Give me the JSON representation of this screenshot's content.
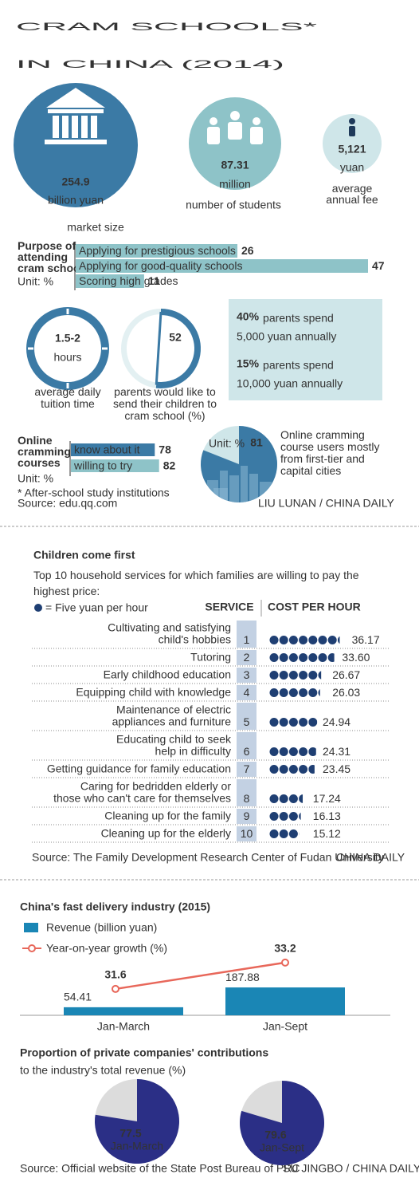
{
  "header": {
    "title": "CRAM SCHOOLS*\nIN CHINA (2014)"
  },
  "stats": [
    {
      "value": "254.9",
      "unit": "billion yuan",
      "label": "market size"
    },
    {
      "value": "87.31",
      "unit": "million",
      "label": "number of students"
    },
    {
      "value": "5,121",
      "unit": "yuan",
      "label": "average annual fee"
    }
  ],
  "tuition": {
    "value": "1.5-2",
    "unit": "hours",
    "label": "average daily tuition time"
  },
  "spending": [
    {
      "share": "40%",
      "text": "parents spend",
      "amount": "5,000 yuan annually"
    },
    {
      "share": "15%",
      "text": "parents spend",
      "amount": "10,000 yuan annually"
    }
  ],
  "notes": {
    "footnote": "* After-school study institutions",
    "source": "Source: edu.qq.com",
    "credit": "LIU LUNAN / CHINA DAILY"
  },
  "services_notes": {
    "source": "Source: The Family Development Research Center of Fudan University",
    "credit": "CHINA DAILY"
  },
  "delivery_notes": {
    "source": "Source: Official website of the State Post Bureau of PRC",
    "credit": "SU JINGBO / CHINA DAILY"
  },
  "chart_data": [
    {
      "type": "bar",
      "title": "Purpose of attending cram school",
      "unit": "Unit: %",
      "categories": [
        "Applying for prestigious schools",
        "Applying for good-quality schools",
        "Scoring high grades"
      ],
      "values": [
        26,
        47,
        11
      ],
      "color": "#8ec3c8",
      "xlim": [
        0,
        47
      ]
    },
    {
      "type": "donut",
      "values": [
        52
      ],
      "caption": "parents would like to send their children to cram school (%)",
      "color": "#3b7aa5"
    },
    {
      "type": "bar",
      "title": "Online cramming courses",
      "unit": "Unit: %",
      "categories": [
        "know about it",
        "willing to try"
      ],
      "values": [
        78,
        82
      ],
      "colors": [
        "#3b7aa5",
        "#8ec3c8"
      ],
      "xlim": [
        0,
        100
      ]
    },
    {
      "type": "pie",
      "unit": "Unit: %",
      "values": [
        81
      ],
      "caption": "Online cramming course users mostly from first-tier and capital cities",
      "color": "#3b7aa5",
      "rest_color": "#cfe6e9"
    },
    {
      "type": "dot",
      "title": "Children come first",
      "subtitle": "Top 10 household services for which families are willing to pay the highest price:",
      "legend": "= Five yuan per hour",
      "dot_unit": 5,
      "columns": [
        "SERVICE",
        "COST PER HOUR"
      ],
      "categories": [
        "Cultivating and satisfying\nchild's hobbies",
        "Tutoring",
        "Early childhood education",
        "Equipping child with knowledge",
        "Maintenance of electric\nappliances and furniture",
        "Educating child to seek\nhelp in difficulty",
        "Getting guidance for family education",
        "Caring for bedridden elderly or\nthose who can't care for themselves",
        "Cleaning up for the family",
        "Cleaning up for the elderly"
      ],
      "ranks": [
        1,
        2,
        3,
        4,
        5,
        6,
        7,
        8,
        9,
        10
      ],
      "values": [
        36.17,
        33.6,
        26.67,
        26.03,
        24.94,
        24.31,
        23.45,
        17.24,
        16.13,
        15.12
      ],
      "value_labels": [
        "36.17",
        "33.60",
        "26.67",
        "26.03",
        "24.94",
        "24.31",
        "23.45",
        "17.24",
        "16.13",
        "15.12"
      ],
      "color": "#1f3f73"
    },
    {
      "type": "combo",
      "title": "China's fast delivery industry (2015)",
      "categories": [
        "Jan-March",
        "Jan-Sept"
      ],
      "series": [
        {
          "name": "Revenue (billion yuan)",
          "type": "bar",
          "color": "#1a86b5",
          "values": [
            54.41,
            187.88
          ]
        },
        {
          "name": "Year-on-year growth (%)",
          "type": "line",
          "color": "#e8675a",
          "axis": "y2",
          "values": [
            31.6,
            33.2
          ]
        }
      ],
      "ylim": [
        0,
        500
      ],
      "y2lim": [
        30,
        34.5
      ]
    },
    {
      "type": "pie",
      "title": "Proportion of private companies' contributions",
      "subtitle": "to the industry's total revenue (%)",
      "categories": [
        "Jan-March",
        "Jan-Sept"
      ],
      "values": [
        77.5,
        79.6
      ],
      "color": "#2b2f86",
      "rest_color": "#dcdcdc"
    }
  ]
}
